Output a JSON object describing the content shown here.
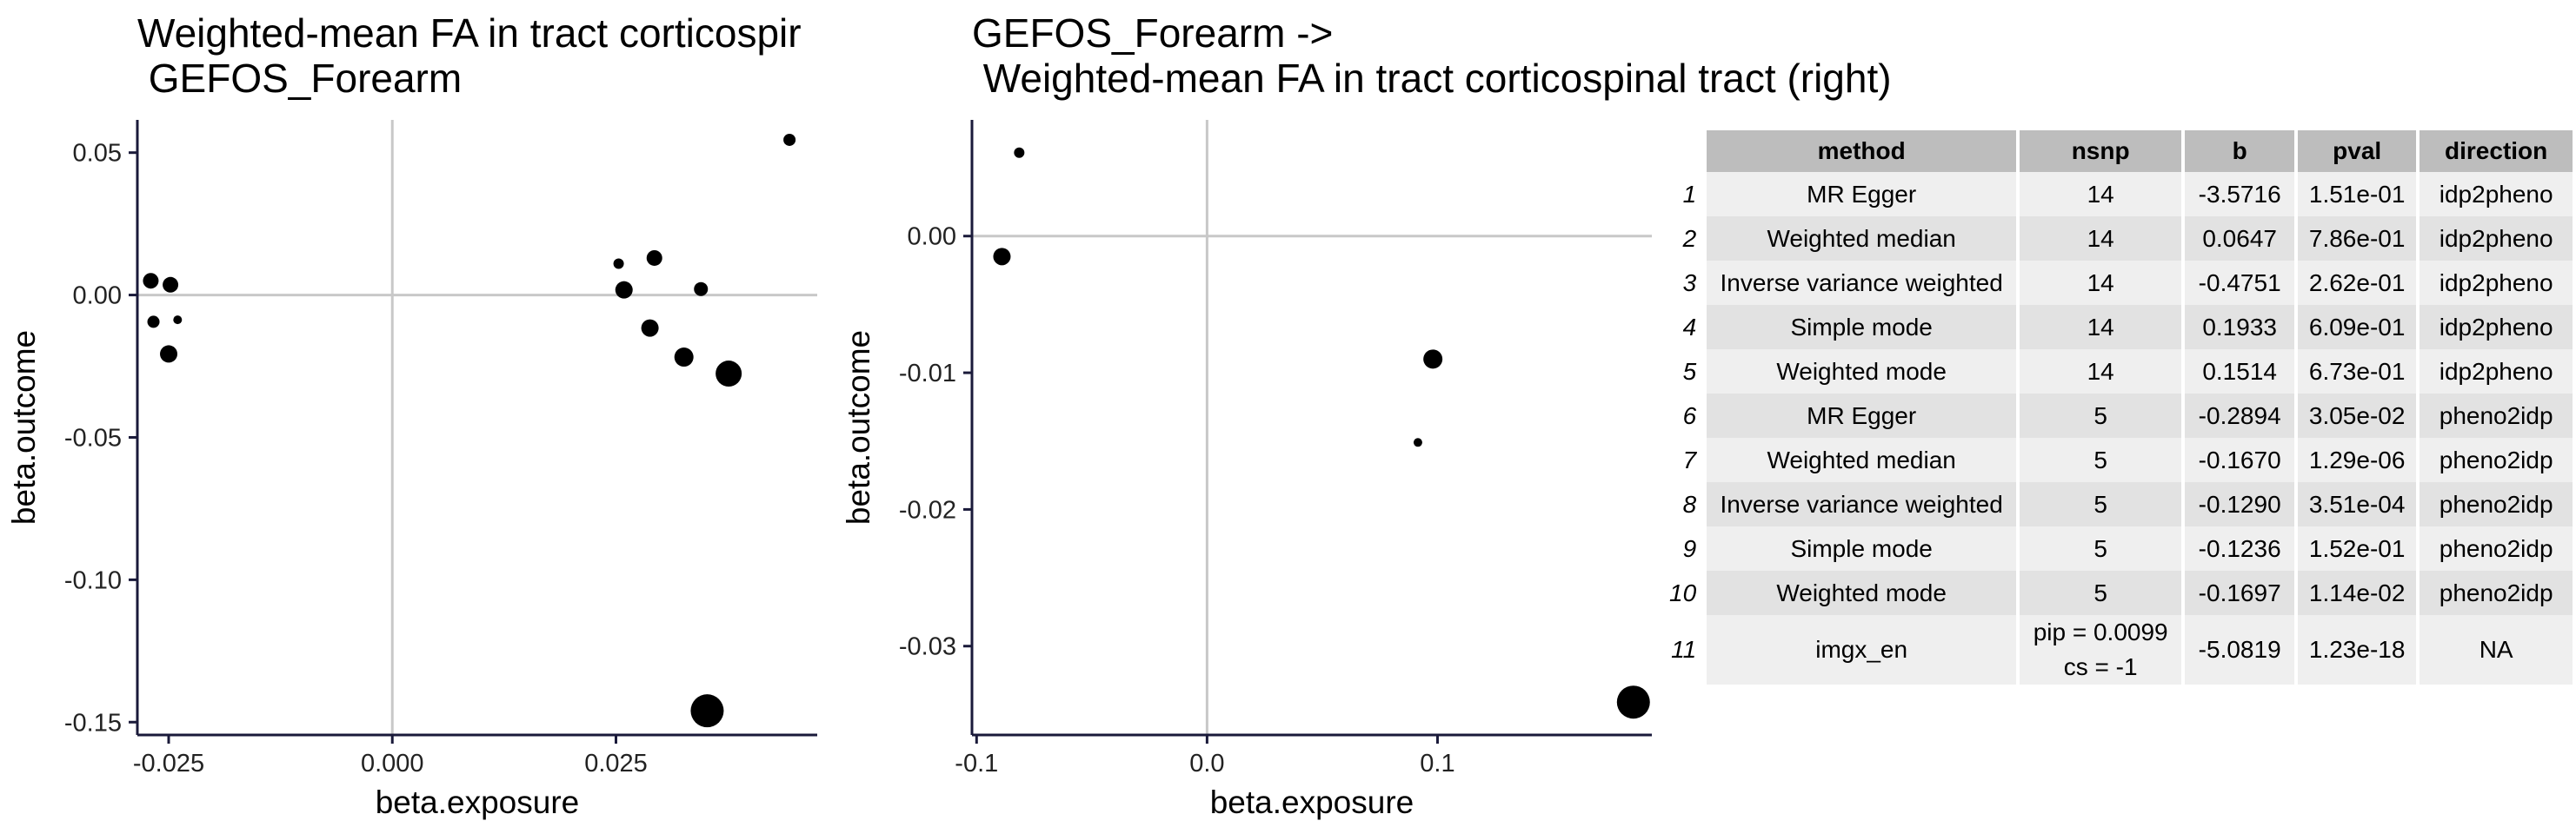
{
  "plot1": {
    "title": "Weighted-mean FA in tract corticospir\n GEFOS_Forearm",
    "xlabel": "beta.exposure",
    "ylabel": "beta.outcome"
  },
  "plot2": {
    "title": "GEFOS_Forearm ->\n Weighted-mean FA in tract corticospinal tract (right)",
    "xlabel": "beta.exposure",
    "ylabel": "beta.outcome"
  },
  "chart_data": [
    {
      "type": "scatter",
      "title": "Weighted-mean FA in tract corticospir\n GEFOS_Forearm",
      "xlabel": "beta.exposure",
      "ylabel": "beta.outcome",
      "xlim": [
        -0.0285,
        0.0475
      ],
      "ylim": [
        -0.1545,
        0.0615
      ],
      "xticks": [
        -0.025,
        0.0,
        0.025
      ],
      "xtick_labels": [
        "-0.025",
        "0.000",
        "0.025"
      ],
      "yticks": [
        0.05,
        0.0,
        -0.05,
        -0.1,
        -0.15
      ],
      "ytick_labels": [
        "0.05",
        "0.00",
        "-0.05",
        "-0.10",
        "-0.15"
      ],
      "reference_lines": {
        "x": 0,
        "y": 0
      },
      "grid": false,
      "points": [
        {
          "x": -0.027,
          "y": 0.005,
          "size": 9
        },
        {
          "x": -0.0267,
          "y": -0.0094,
          "size": 7
        },
        {
          "x": -0.0248,
          "y": 0.0036,
          "size": 9
        },
        {
          "x": -0.025,
          "y": -0.0207,
          "size": 10
        },
        {
          "x": -0.024,
          "y": -0.0087,
          "size": 5
        },
        {
          "x": 0.0253,
          "y": 0.011,
          "size": 6
        },
        {
          "x": 0.0259,
          "y": 0.0018,
          "size": 10
        },
        {
          "x": 0.0293,
          "y": 0.013,
          "size": 9
        },
        {
          "x": 0.0288,
          "y": -0.0116,
          "size": 10
        },
        {
          "x": 0.0326,
          "y": -0.0218,
          "size": 11
        },
        {
          "x": 0.0345,
          "y": 0.0021,
          "size": 8
        },
        {
          "x": 0.0376,
          "y": -0.0276,
          "size": 15
        },
        {
          "x": 0.0352,
          "y": -0.146,
          "size": 19
        },
        {
          "x": 0.0444,
          "y": 0.0545,
          "size": 7
        }
      ]
    },
    {
      "type": "scatter",
      "title": "GEFOS_Forearm ->\n Weighted-mean FA in tract corticospinal tract (right)",
      "xlabel": "beta.exposure",
      "ylabel": "beta.outcome",
      "xlim": [
        -0.102,
        0.193
      ],
      "ylim": [
        -0.0365,
        0.0085
      ],
      "xticks": [
        -0.1,
        0.0,
        0.1
      ],
      "xtick_labels": [
        "-0.1",
        "0.0",
        "0.1"
      ],
      "yticks": [
        0.0,
        -0.01,
        -0.02,
        -0.03
      ],
      "ytick_labels": [
        "0.00",
        "-0.01",
        "-0.02",
        "-0.03"
      ],
      "reference_lines": {
        "x": 0,
        "y": 0
      },
      "grid": false,
      "points": [
        {
          "x": -0.0815,
          "y": 0.0061,
          "size": 6
        },
        {
          "x": -0.089,
          "y": -0.0015,
          "size": 10
        },
        {
          "x": 0.098,
          "y": -0.009,
          "size": 11
        },
        {
          "x": 0.0915,
          "y": -0.0151,
          "size": 5
        },
        {
          "x": 0.185,
          "y": -0.0341,
          "size": 19
        }
      ]
    },
    {
      "type": "table",
      "columns": [
        "method",
        "nsnp",
        "b",
        "pval",
        "direction"
      ],
      "rows": [
        {
          "rn": "1",
          "method": "MR Egger",
          "nsnp": "14",
          "b": "-3.5716",
          "pval": "1.51e-01",
          "direction": "idp2pheno"
        },
        {
          "rn": "2",
          "method": "Weighted median",
          "nsnp": "14",
          "b": "0.0647",
          "pval": "7.86e-01",
          "direction": "idp2pheno"
        },
        {
          "rn": "3",
          "method": "Inverse variance weighted",
          "nsnp": "14",
          "b": "-0.4751",
          "pval": "2.62e-01",
          "direction": "idp2pheno"
        },
        {
          "rn": "4",
          "method": "Simple mode",
          "nsnp": "14",
          "b": "0.1933",
          "pval": "6.09e-01",
          "direction": "idp2pheno"
        },
        {
          "rn": "5",
          "method": "Weighted mode",
          "nsnp": "14",
          "b": "0.1514",
          "pval": "6.73e-01",
          "direction": "idp2pheno"
        },
        {
          "rn": "6",
          "method": "MR Egger",
          "nsnp": "5",
          "b": "-0.2894",
          "pval": "3.05e-02",
          "direction": "pheno2idp"
        },
        {
          "rn": "7",
          "method": "Weighted median",
          "nsnp": "5",
          "b": "-0.1670",
          "pval": "1.29e-06",
          "direction": "pheno2idp"
        },
        {
          "rn": "8",
          "method": "Inverse variance weighted",
          "nsnp": "5",
          "b": "-0.1290",
          "pval": "3.51e-04",
          "direction": "pheno2idp"
        },
        {
          "rn": "9",
          "method": "Simple mode",
          "nsnp": "5",
          "b": "-0.1236",
          "pval": "1.52e-01",
          "direction": "pheno2idp"
        },
        {
          "rn": "10",
          "method": "Weighted mode",
          "nsnp": "5",
          "b": "-0.1697",
          "pval": "1.14e-02",
          "direction": "pheno2idp"
        },
        {
          "rn": "11",
          "method": "imgx_en",
          "nsnp": "pip = 0.0099",
          "nsnp2": "cs = -1",
          "b": "-5.0819",
          "pval": "1.23e-18",
          "direction": "NA"
        }
      ]
    }
  ]
}
